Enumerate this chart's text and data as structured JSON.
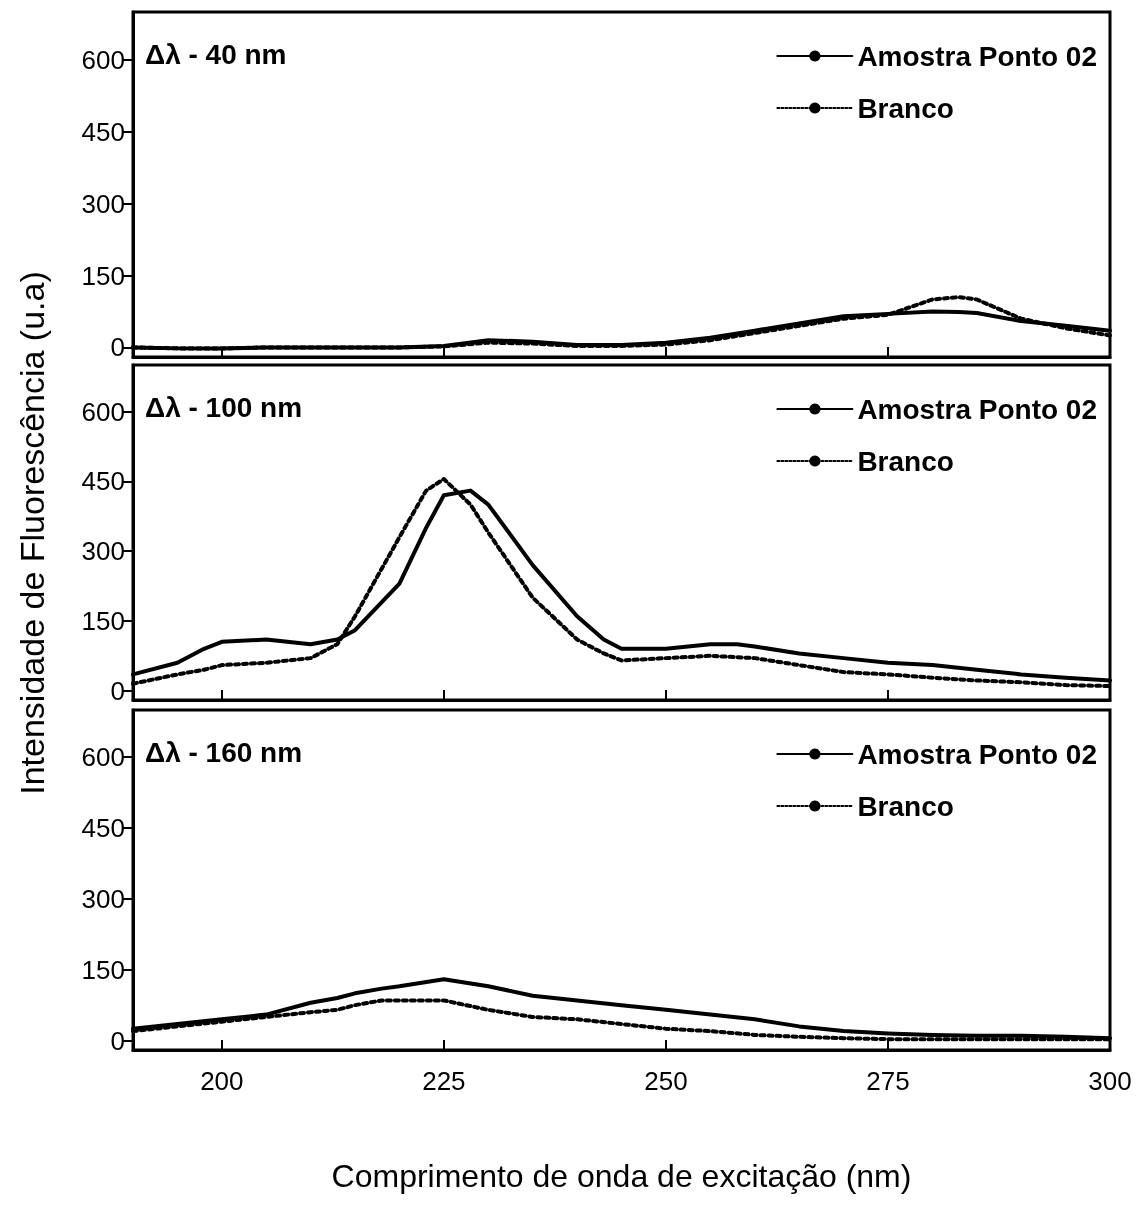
{
  "chart_data": [
    {
      "type": "line",
      "annotations": [
        "Δλ - 40 nm"
      ],
      "xlim": [
        190,
        300
      ],
      "xticks": [
        200,
        225,
        250,
        275,
        300
      ],
      "ylim": [
        -20,
        700
      ],
      "yticks": [
        0,
        150,
        300,
        450,
        600
      ],
      "tick_labels": "y",
      "legend": "top right",
      "grid": false,
      "x": [
        190,
        195,
        200,
        205,
        210,
        215,
        220,
        225,
        230,
        235,
        240,
        245,
        250,
        255,
        260,
        265,
        270,
        275,
        280,
        283,
        285,
        290,
        295,
        300
      ],
      "series": [
        {
          "name": "Amostra Ponto 02",
          "color": "#000000",
          "line_style": "solid",
          "values": [
            0,
            -2,
            -2,
            0,
            0,
            0,
            0,
            3,
            15,
            12,
            5,
            5,
            10,
            20,
            35,
            50,
            65,
            70,
            75,
            74,
            72,
            55,
            45,
            35
          ]
        },
        {
          "name": "Branco",
          "color": "#000000",
          "line_style": "dotted",
          "values": [
            0,
            -2,
            -2,
            0,
            0,
            0,
            0,
            2,
            10,
            8,
            3,
            3,
            6,
            15,
            30,
            45,
            60,
            68,
            100,
            105,
            100,
            60,
            40,
            25
          ]
        }
      ]
    },
    {
      "type": "line",
      "annotations": [
        "Δλ - 100 nm"
      ],
      "ylabel": "Intensidade de Fluorescência (u.a)",
      "xlim": [
        190,
        300
      ],
      "xticks": [
        200,
        225,
        250,
        275,
        300
      ],
      "ylim": [
        -20,
        700
      ],
      "yticks": [
        0,
        150,
        300,
        450,
        600
      ],
      "tick_labels": "y",
      "legend": "top right",
      "grid": false,
      "x": [
        190,
        195,
        198,
        200,
        205,
        210,
        213,
        215,
        220,
        223,
        225,
        228,
        230,
        235,
        240,
        243,
        245,
        250,
        255,
        258,
        260,
        265,
        270,
        275,
        280,
        285,
        290,
        295,
        300
      ],
      "series": [
        {
          "name": "Amostra Ponto 02",
          "color": "#000000",
          "line_style": "solid",
          "values": [
            35,
            60,
            90,
            105,
            110,
            100,
            110,
            130,
            230,
            350,
            420,
            430,
            400,
            270,
            160,
            110,
            90,
            90,
            100,
            100,
            95,
            80,
            70,
            60,
            55,
            45,
            35,
            28,
            22
          ]
        },
        {
          "name": "Branco",
          "color": "#000000",
          "line_style": "dotted",
          "values": [
            15,
            35,
            45,
            55,
            60,
            70,
            100,
            160,
            330,
            430,
            455,
            400,
            340,
            200,
            110,
            80,
            65,
            70,
            75,
            72,
            70,
            55,
            40,
            35,
            28,
            22,
            18,
            12,
            10
          ]
        }
      ]
    },
    {
      "type": "line",
      "annotations": [
        "Δλ - 160 nm"
      ],
      "xlabel": "Comprimento de onda de excitação (nm)",
      "xlim": [
        190,
        300
      ],
      "xticks": [
        200,
        225,
        250,
        275,
        300
      ],
      "ylim": [
        -20,
        700
      ],
      "yticks": [
        0,
        150,
        300,
        450,
        600
      ],
      "legend": "top right",
      "grid": false,
      "x": [
        190,
        195,
        200,
        205,
        210,
        213,
        215,
        218,
        220,
        225,
        230,
        235,
        240,
        245,
        250,
        255,
        260,
        265,
        270,
        275,
        280,
        285,
        290,
        295,
        300
      ],
      "series": [
        {
          "name": "Amostra Ponto 02",
          "color": "#000000",
          "line_style": "solid",
          "values": [
            25,
            35,
            45,
            55,
            80,
            90,
            100,
            110,
            115,
            130,
            115,
            95,
            85,
            75,
            65,
            55,
            45,
            30,
            20,
            15,
            12,
            10,
            10,
            8,
            5
          ]
        },
        {
          "name": "Branco",
          "color": "#000000",
          "line_style": "dotted",
          "values": [
            20,
            30,
            40,
            50,
            60,
            65,
            75,
            85,
            85,
            85,
            65,
            50,
            45,
            35,
            25,
            20,
            12,
            8,
            5,
            3,
            3,
            3,
            3,
            3,
            3
          ]
        }
      ]
    }
  ]
}
